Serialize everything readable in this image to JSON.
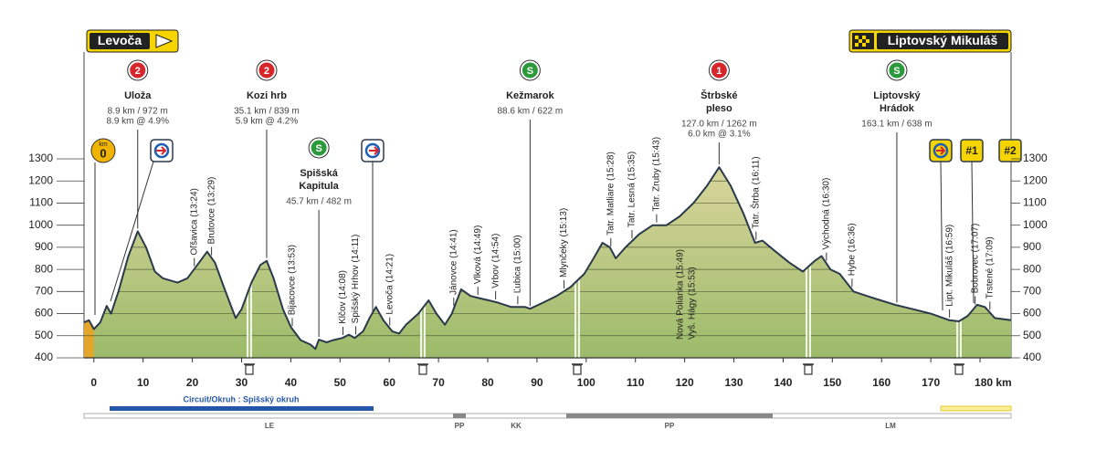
{
  "chart_data": {
    "type": "area",
    "start": "Levoča",
    "finish": "Liptovský Mikuláš",
    "x": [
      -2,
      -1,
      0,
      1.3,
      2.6,
      3.5,
      5,
      7,
      8.9,
      10.6,
      12.4,
      14,
      17,
      19,
      21,
      23,
      24.6,
      26.4,
      28.8,
      30,
      32,
      33.8,
      35.1,
      36.5,
      38.4,
      40,
      42,
      44,
      45,
      45.7,
      47.3,
      48.6,
      50.5,
      51.8,
      53,
      54.7,
      56,
      57.3,
      58.8,
      60.6,
      62,
      63.4,
      65.9,
      68,
      69.6,
      71.3,
      72.7,
      74.6,
      76.5,
      78.3,
      80.2,
      82,
      84.8,
      87.6,
      88.6,
      91.3,
      94,
      96.8,
      99.6,
      101.5,
      103.3,
      104.8,
      106,
      108,
      110.8,
      113.5,
      116.3,
      119,
      121.8,
      124.6,
      127.0,
      129.3,
      132,
      134.3,
      135.8,
      138.5,
      141.3,
      144,
      146.5,
      147.8,
      149.6,
      151.5,
      154.3,
      157,
      159.8,
      163.1,
      166.4,
      170,
      173.8,
      175.7,
      177.5,
      179.4,
      181,
      183,
      186.3
    ],
    "values": [
      560,
      570,
      530,
      560,
      635,
      600,
      700,
      860,
      972,
      900,
      790,
      760,
      740,
      760,
      820,
      880,
      830,
      720,
      580,
      620,
      740,
      820,
      839,
      760,
      620,
      540,
      480,
      460,
      440,
      482,
      470,
      480,
      490,
      505,
      490,
      520,
      580,
      630,
      570,
      520,
      510,
      550,
      600,
      660,
      600,
      550,
      600,
      710,
      680,
      670,
      660,
      650,
      630,
      630,
      622,
      650,
      680,
      720,
      780,
      850,
      920,
      900,
      850,
      900,
      960,
      1000,
      1000,
      1040,
      1100,
      1180,
      1262,
      1180,
      1050,
      920,
      930,
      880,
      830,
      790,
      840,
      860,
      800,
      780,
      700,
      680,
      660,
      638,
      620,
      600,
      570,
      565,
      590,
      640,
      630,
      580,
      570
    ],
    "xlim": [
      -2,
      186.3
    ],
    "ylim": [
      400,
      1300
    ],
    "xticks": [
      0,
      10,
      20,
      30,
      40,
      50,
      60,
      70,
      80,
      90,
      100,
      110,
      120,
      130,
      140,
      150,
      160,
      170,
      {
        "value": 180,
        "label": "180 km"
      }
    ],
    "yticks": [
      400,
      500,
      600,
      700,
      800,
      900,
      1000,
      1100,
      1200,
      1300
    ],
    "grid": true,
    "climbs": [
      {
        "badge": "2",
        "color": "#d7262b",
        "name": [
          "Uloža"
        ],
        "info": [
          "8.9 km / 972 m",
          "8.9 km @ 4.9%"
        ],
        "km": 8.9
      },
      {
        "badge": "2",
        "color": "#d7262b",
        "name": [
          "Kozi hrb"
        ],
        "info": [
          "35.1 km / 839 m",
          "5.9 km @ 4.2%"
        ],
        "km": 35.1
      },
      {
        "badge": "S",
        "color": "#2a9a3a",
        "name": [
          "Spišská",
          "Kapitula"
        ],
        "info": [
          "45.7 km / 482 m"
        ],
        "km": 45.7
      },
      {
        "badge": "S",
        "color": "#2a9a3a",
        "name": [
          "Kežmarok"
        ],
        "info": [
          "88.6 km / 622 m"
        ],
        "km": 88.6
      },
      {
        "badge": "1",
        "color": "#d7262b",
        "name": [
          "Štrbské",
          "pleso"
        ],
        "info": [
          "127.0 km / 1262 m",
          "6.0 km @ 3.1%"
        ],
        "km": 127.0
      },
      {
        "badge": "S",
        "color": "#2a9a3a",
        "name": [
          "Liptovský",
          "Hrádok"
        ],
        "info": [
          "163.1 km / 638 m"
        ],
        "km": 163.1
      }
    ],
    "places": [
      {
        "label": "Oľšavica (13:24)",
        "km": 20.4
      },
      {
        "label": "Brutovce (13:29)",
        "km": 23.9
      },
      {
        "label": "Bijacovce (13:53)",
        "km": 40.3
      },
      {
        "label": "Klčov (14:08)",
        "km": 50.6
      },
      {
        "label": "Spišský Hrhov (14:11)",
        "km": 53.2
      },
      {
        "label": "Levoča (14:21)",
        "km": 60.1
      },
      {
        "label": "Jánovce (14:41)",
        "km": 73.1
      },
      {
        "label": "Vlková (14:49)",
        "km": 78
      },
      {
        "label": "Vrbov (14:54)",
        "km": 81.6
      },
      {
        "label": "Ľubica (15:00)",
        "km": 86.1
      },
      {
        "label": "Mlynčeky (15:13)",
        "km": 95.5
      },
      {
        "label": "Tatr. Matliare (15:28)",
        "km": 105
      },
      {
        "label": "Tatr. Lesná (15:35)",
        "km": 109.3
      },
      {
        "label": "Tatr. Zruby (15:43)",
        "km": 114.3
      },
      {
        "label": "Nová Polianka (15:49)",
        "km": 119.1
      },
      {
        "label": "Vyš. Hágy (15:53)",
        "km": 121.5
      },
      {
        "label": "Tatr. Štrba (16:11)",
        "km": 134.5
      },
      {
        "label": "Východná (16:30)",
        "km": 148.8
      },
      {
        "label": "Hybe (16:36)",
        "km": 154
      },
      {
        "label": "Lipt. Mikuláš (16:59)",
        "km": 173.8
      },
      {
        "label": "Bobrovec (17:07)",
        "km": 179
      },
      {
        "label": "Trstené (17:09)",
        "km": 182
      }
    ],
    "km_badge": [
      "km",
      "0"
    ],
    "sprints": [
      "#1",
      "#2"
    ],
    "circuit": "Circuit/Okruh : Spišský okruh",
    "regions": [
      "LE",
      "PP",
      "KK",
      "PP",
      "LM"
    ]
  }
}
